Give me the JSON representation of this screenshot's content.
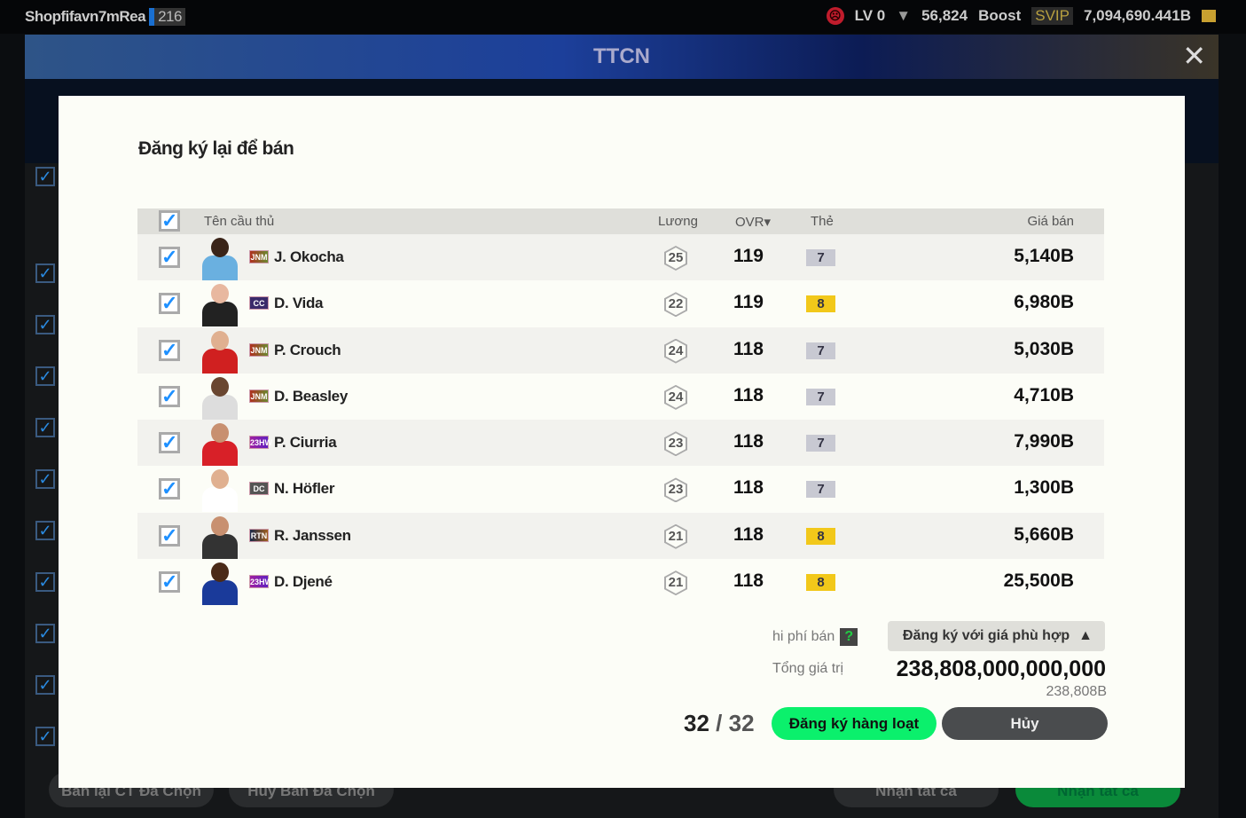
{
  "topbar": {
    "username": "Shopfifavn7mRea",
    "level_badge": "216",
    "lv": "LV 0",
    "coins": "56,824",
    "boost": "Boost",
    "svip": "SVIP",
    "balance": "7,094,690.441B"
  },
  "window": {
    "title": "TTCN"
  },
  "background": {
    "buttons": [
      "Bán lại CT Đã Chọn",
      "Hủy Bán Đã Chọn",
      "Nhận tất cả",
      "Nhận tất cả"
    ]
  },
  "modal": {
    "title": "Đăng ký lại để bán",
    "columns": {
      "name": "Tên cầu thủ",
      "salary": "Lương",
      "ovr": "OVR▾",
      "grade": "Thẻ",
      "price": "Giá bán"
    },
    "rows": [
      {
        "season": "JNM",
        "name": "J. Okocha",
        "salary": "25",
        "ovr": "119",
        "grade": "7",
        "price": "5,140B",
        "checked": true
      },
      {
        "season": "CC",
        "name": "D. Vida",
        "salary": "22",
        "ovr": "119",
        "grade": "8",
        "price": "6,980B",
        "checked": true
      },
      {
        "season": "JNM",
        "name": "P. Crouch",
        "salary": "24",
        "ovr": "118",
        "grade": "7",
        "price": "5,030B",
        "checked": true
      },
      {
        "season": "JNM",
        "name": "D. Beasley",
        "salary": "24",
        "ovr": "118",
        "grade": "7",
        "price": "4,710B",
        "checked": true
      },
      {
        "season": "23HW",
        "name": "P. Ciurria",
        "salary": "23",
        "ovr": "118",
        "grade": "7",
        "price": "7,990B",
        "checked": true
      },
      {
        "season": "DC",
        "name": "N. Höfler",
        "salary": "23",
        "ovr": "118",
        "grade": "7",
        "price": "1,300B",
        "checked": true
      },
      {
        "season": "RTN",
        "name": "R. Janssen",
        "salary": "21",
        "ovr": "118",
        "grade": "8",
        "price": "5,660B",
        "checked": true
      },
      {
        "season": "23HW",
        "name": "D. Djené",
        "salary": "21",
        "ovr": "118",
        "grade": "8",
        "price": "25,500B",
        "checked": true
      }
    ],
    "fee_label": "hi phí bán",
    "fee_help": "?",
    "price_mode": "Đăng ký với giá phù hợp",
    "total_label": "Tổng giá trị",
    "total_value": "238,808,000,000,000",
    "total_short": "238,808B",
    "count_selected": "32",
    "count_sep": "/",
    "count_total": "32",
    "register_button": "Đăng ký hàng loạt",
    "cancel_button": "Hủy"
  },
  "colors": {
    "accent_green": "#0bf06c",
    "check_blue": "#1e90ff",
    "grade_silver": "#c8c9d2",
    "grade_gold": "#f2c81a"
  }
}
